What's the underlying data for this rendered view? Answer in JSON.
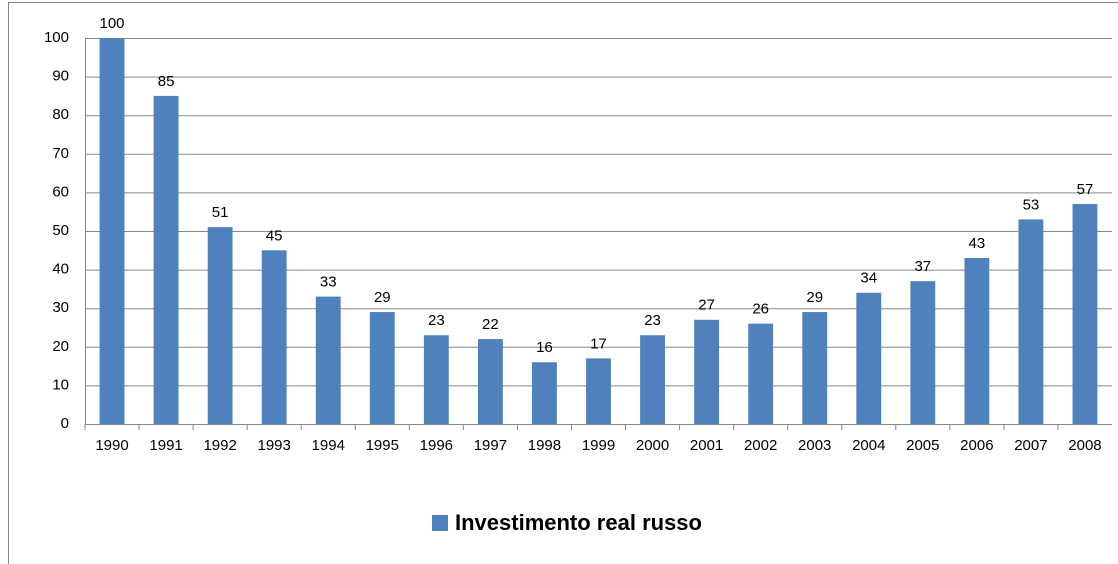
{
  "chart_data": {
    "type": "bar",
    "categories": [
      "1990",
      "1991",
      "1992",
      "1993",
      "1994",
      "1995",
      "1996",
      "1997",
      "1998",
      "1999",
      "2000",
      "2001",
      "2002",
      "2003",
      "2004",
      "2005",
      "2006",
      "2007",
      "2008"
    ],
    "series": [
      {
        "name": "Investimento real russo",
        "color": "#4f81bd",
        "values": [
          100,
          85,
          51,
          45,
          33,
          29,
          23,
          22,
          16,
          17,
          23,
          27,
          26,
          29,
          34,
          37,
          43,
          53,
          57
        ]
      }
    ],
    "ylim": [
      0,
      100
    ],
    "yticks": [
      0,
      10,
      20,
      30,
      40,
      50,
      60,
      70,
      80,
      90,
      100
    ],
    "grid": true,
    "legend": "bottom",
    "data_labels": true
  }
}
